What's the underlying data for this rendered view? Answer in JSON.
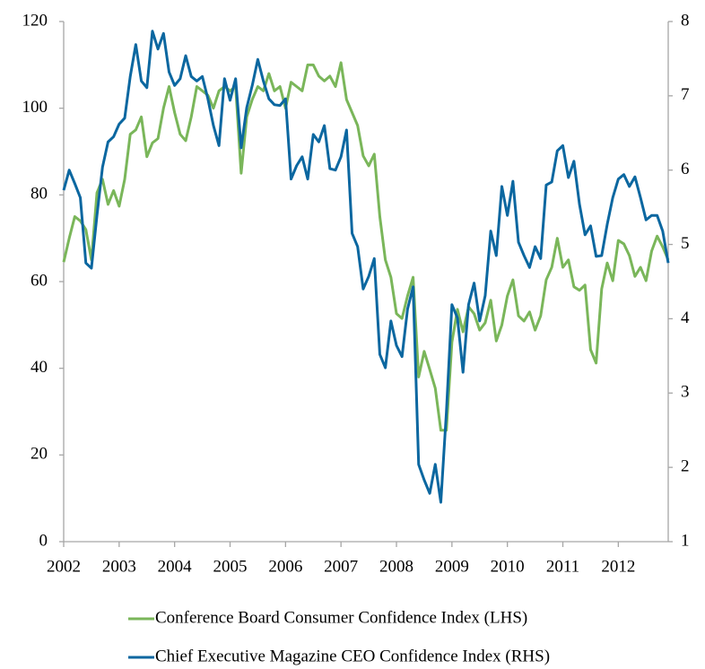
{
  "chart_data": {
    "type": "line",
    "x": [
      2002,
      2002.1,
      2002.2,
      2002.3,
      2002.4,
      2002.5,
      2002.6,
      2002.7,
      2002.8,
      2002.9,
      2003,
      2003.1,
      2003.2,
      2003.3,
      2003.4,
      2003.5,
      2003.6,
      2003.7,
      2003.8,
      2003.9,
      2004,
      2004.1,
      2004.2,
      2004.3,
      2004.4,
      2004.5,
      2004.6,
      2004.7,
      2004.8,
      2004.9,
      2005,
      2005.1,
      2005.2,
      2005.3,
      2005.4,
      2005.5,
      2005.6,
      2005.7,
      2005.8,
      2005.9,
      2006,
      2006.1,
      2006.2,
      2006.3,
      2006.4,
      2006.5,
      2006.6,
      2006.7,
      2006.8,
      2006.9,
      2007,
      2007.1,
      2007.2,
      2007.3,
      2007.4,
      2007.5,
      2007.6,
      2007.7,
      2007.8,
      2007.9,
      2008,
      2008.1,
      2008.2,
      2008.3,
      2008.4,
      2008.5,
      2008.6,
      2008.7,
      2008.8,
      2008.9,
      2009,
      2009.1,
      2009.2,
      2009.3,
      2009.4,
      2009.5,
      2009.6,
      2009.7,
      2009.8,
      2009.9,
      2010,
      2010.1,
      2010.2,
      2010.3,
      2010.4,
      2010.5,
      2010.6,
      2010.7,
      2010.8,
      2010.9,
      2011,
      2011.1,
      2011.2,
      2011.3,
      2011.4,
      2011.5,
      2011.6,
      2011.7,
      2011.8,
      2011.9,
      2012,
      2012.1,
      2012.2,
      2012.3,
      2012.4,
      2012.5,
      2012.6,
      2012.7,
      2012.8,
      2012.9
    ],
    "series": [
      {
        "name": "Conference Board Consumer Confidence Index (LHS)",
        "color": "#7ab65a",
        "values": [
          64.5,
          70,
          75,
          74,
          72,
          65,
          80.5,
          83.6,
          77.8,
          81,
          77.4,
          83.6,
          94,
          95,
          98,
          88.8,
          92,
          93,
          100,
          105,
          99,
          94,
          92.5,
          98,
          105,
          104,
          103,
          100,
          104,
          105,
          104,
          105,
          85,
          98,
          102,
          105,
          104,
          108,
          104,
          105,
          100,
          106,
          105,
          104,
          110,
          110,
          107.4,
          106.3,
          107.4,
          105,
          110.5,
          102,
          99,
          96,
          89,
          86.7,
          89.4,
          75,
          65,
          61,
          52.6,
          51.5,
          56.7,
          61,
          38,
          43.9,
          39.7,
          35.4,
          25.7,
          25.7,
          46,
          53.6,
          48.4,
          54.2,
          52.6,
          48.8,
          50.5,
          55.7,
          46.3,
          50,
          56.7,
          60.4,
          52.1,
          50.9,
          53,
          48.8,
          52.1,
          60.4,
          63.3,
          70,
          63.3,
          65,
          58.8,
          58,
          59.2,
          44.3,
          41.2,
          58.3,
          64.3,
          60.2,
          69.5,
          68.7,
          66,
          61.2,
          63.3,
          60.2,
          67,
          70.5,
          68,
          65
        ]
      },
      {
        "name": "Chief Executive Magazine CEO Confidence Index (RHS)",
        "color": "#0b67a0",
        "axis": "y2",
        "values": [
          5.73,
          6.0,
          5.82,
          5.63,
          4.75,
          4.68,
          5.39,
          6.04,
          6.38,
          6.45,
          6.62,
          6.7,
          7.26,
          7.69,
          7.2,
          7.11,
          7.87,
          7.63,
          7.84,
          7.32,
          7.14,
          7.23,
          7.54,
          7.26,
          7.2,
          7.26,
          6.96,
          6.6,
          6.33,
          7.23,
          6.94,
          7.23,
          6.3,
          6.84,
          7.14,
          7.49,
          7.2,
          6.96,
          6.88,
          6.87,
          6.96,
          5.88,
          6.06,
          6.18,
          5.88,
          6.48,
          6.38,
          6.6,
          6.02,
          6.0,
          6.18,
          6.54,
          5.15,
          4.97,
          4.4,
          4.57,
          4.81,
          3.52,
          3.34,
          3.97,
          3.64,
          3.49,
          4.13,
          4.43,
          2.04,
          1.83,
          1.65,
          2.04,
          1.53,
          2.74,
          4.19,
          4.01,
          3.28,
          4.19,
          4.48,
          3.97,
          4.31,
          5.18,
          4.85,
          5.78,
          5.39,
          5.85,
          5.03,
          4.85,
          4.69,
          4.97,
          4.81,
          5.8,
          5.84,
          6.26,
          6.33,
          5.9,
          6.12,
          5.54,
          5.13,
          5.25,
          4.84,
          4.85,
          5.27,
          5.63,
          5.88,
          5.94,
          5.78,
          5.91,
          5.63,
          5.33,
          5.39,
          5.39,
          5.18,
          4.75
        ]
      }
    ],
    "xlim": [
      2002,
      2012.9
    ],
    "xticks": [
      2002,
      2003,
      2004,
      2005,
      2006,
      2007,
      2008,
      2009,
      2010,
      2011,
      2012
    ],
    "ylim": [
      0,
      120
    ],
    "yticks": [
      0,
      20,
      40,
      60,
      80,
      100,
      120
    ],
    "y2lim": [
      1,
      8
    ],
    "y2ticks": [
      1,
      2,
      3,
      4,
      5,
      6,
      7,
      8
    ],
    "grid": false,
    "legend": "bottom"
  }
}
